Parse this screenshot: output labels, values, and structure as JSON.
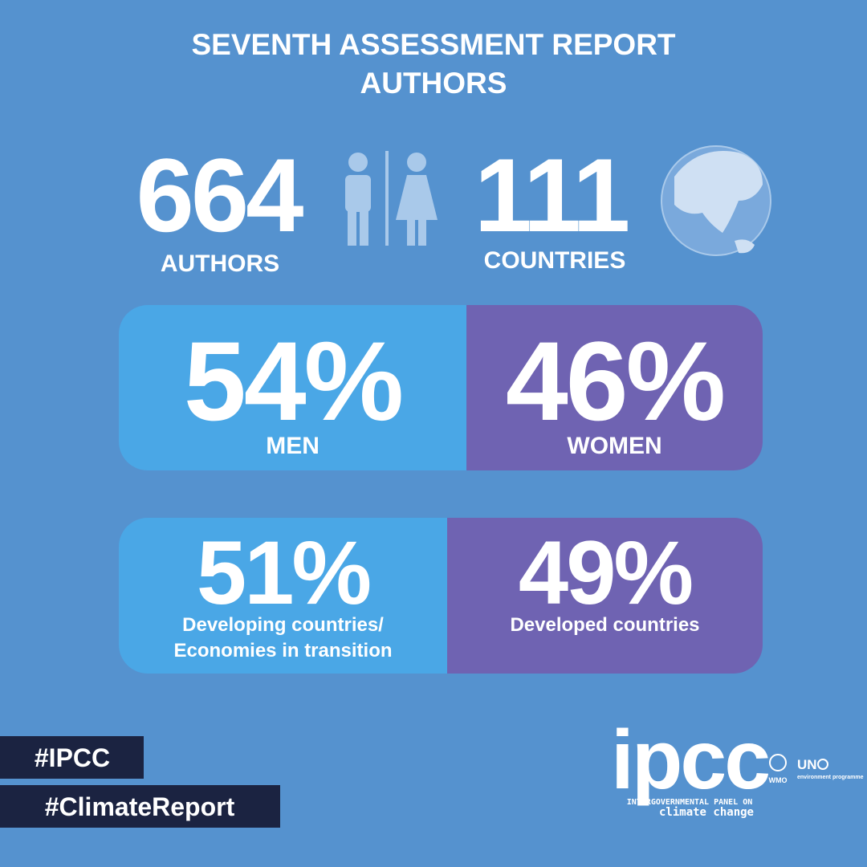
{
  "header": {
    "title_line1": "SEVENTH ASSESSMENT REPORT",
    "title_line2": "AUTHORS"
  },
  "stats": [
    {
      "number": "664",
      "label": "AUTHORS"
    },
    {
      "number": "111",
      "label": "COUNTRIES"
    }
  ],
  "splits": [
    {
      "segments": [
        {
          "value": 54,
          "label": "54%",
          "caption": [
            "MEN"
          ],
          "color": "#4aa7e6"
        },
        {
          "value": 46,
          "label": "46%",
          "caption": [
            "WOMEN"
          ],
          "color": "#6f63b2"
        }
      ]
    },
    {
      "segments": [
        {
          "value": 51,
          "label": "51%",
          "caption": [
            "Developing countries/",
            "Economies in transition"
          ],
          "color": "#4aa7e6"
        },
        {
          "value": 49,
          "label": "49%",
          "caption": [
            "Developed countries"
          ],
          "color": "#6f63b2"
        }
      ]
    }
  ],
  "tags": [
    "#IPCC",
    "#ClimateReport"
  ],
  "logo": {
    "name": "ipcc",
    "line1": "INTERGOVERNMENTAL PANEL ON",
    "line2": "climate change",
    "wmo": "WMO",
    "un": "UN",
    "unep": "environment programme"
  }
}
